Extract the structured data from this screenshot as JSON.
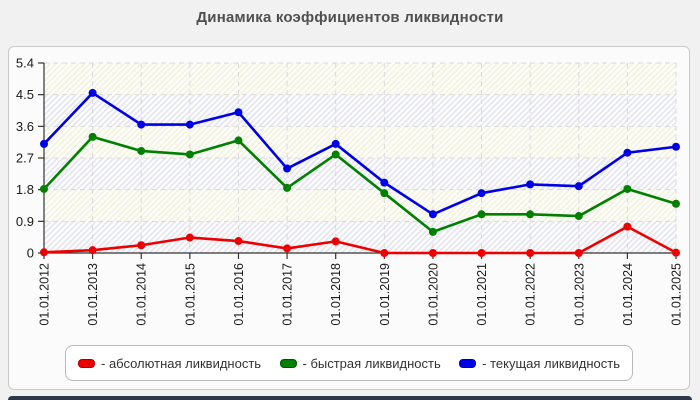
{
  "colors": {
    "page_bg": "#f1f1f1",
    "panel_bg": "#fbfbfb",
    "panel_border": "#c9c9c9",
    "title_text": "#4f4f4f",
    "axis": "#333333",
    "tick_label": "#1a1a1a",
    "gridline": "#d9d9d9",
    "legend_border": "#b9b9b9",
    "legend_text": "#333333",
    "bottom_bar": "#2d3946",
    "band_cream_stripe": "#f3f3df",
    "band_blue_stripe": "#e7e7f1"
  },
  "legend": {
    "items": [
      {
        "label": "- абсолютная ликвидность",
        "swatch_color": "#ee0000",
        "swatch_border": "#aa0000"
      },
      {
        "label": "- быстрая ликвидность",
        "swatch_color": "#008000",
        "swatch_border": "#005500"
      },
      {
        "label": "- текущая ликвидность",
        "swatch_color": "#0000e8",
        "swatch_border": "#000099"
      }
    ]
  },
  "chart_data": {
    "type": "line",
    "title": "Динамика коэффициентов ликвидности",
    "xlabel": "",
    "ylabel": "",
    "x_labels": [
      "01.01.2012",
      "01.01.2013",
      "01.01.2014",
      "01.01.2015",
      "01.01.2016",
      "01.01.2017",
      "01.01.2018",
      "01.01.2019",
      "01.01.2020",
      "01.01.2021",
      "01.01.2022",
      "01.01.2023",
      "01.01.2024",
      "01.01.2025"
    ],
    "ylim": [
      0,
      5.4
    ],
    "yticks": [
      0,
      0.9,
      1.8,
      2.7,
      3.6,
      4.5,
      5.4
    ],
    "grid": "dashed",
    "legend_position": "bottom",
    "plot_background": {
      "hatch": "diagonal",
      "band_order_top_down": [
        "cream",
        "blue",
        "cream",
        "blue",
        "cream",
        "blue"
      ]
    },
    "series": [
      {
        "name": "абсолютная ликвидность",
        "color": "#ee0000",
        "values": [
          0.02,
          0.08,
          0.22,
          0.44,
          0.34,
          0.13,
          0.33,
          0.0,
          0.0,
          0.0,
          0.0,
          0.0,
          0.75,
          0.01
        ]
      },
      {
        "name": "быстрая ликвидность",
        "color": "#008000",
        "values": [
          1.82,
          3.3,
          2.9,
          2.8,
          3.2,
          1.85,
          2.8,
          1.7,
          0.6,
          1.1,
          1.1,
          1.05,
          1.82,
          1.4
        ]
      },
      {
        "name": "текущая ликвидность",
        "color": "#0000e8",
        "values": [
          3.1,
          4.55,
          3.65,
          3.65,
          4.0,
          2.4,
          3.1,
          2.0,
          1.1,
          1.7,
          1.95,
          1.9,
          2.85,
          3.02
        ]
      }
    ]
  }
}
